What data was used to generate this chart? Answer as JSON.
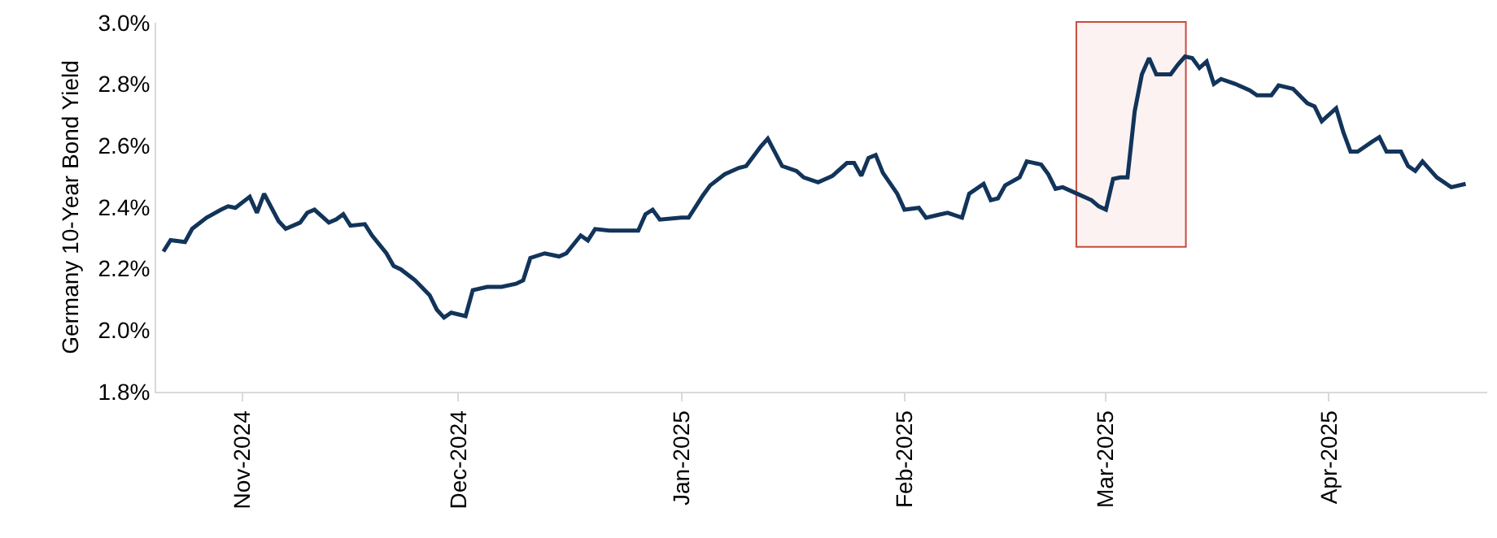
{
  "chart_data": {
    "type": "line",
    "ylabel": "Germany 10-Year Bond Yield",
    "x": [
      "2024-10-21",
      "2024-10-22",
      "2024-10-24",
      "2024-10-25",
      "2024-10-27",
      "2024-10-29",
      "2024-10-30",
      "2024-10-31",
      "2024-11-02",
      "2024-11-03",
      "2024-11-04",
      "2024-11-06",
      "2024-11-07",
      "2024-11-09",
      "2024-11-10",
      "2024-11-11",
      "2024-11-13",
      "2024-11-14",
      "2024-11-15",
      "2024-11-16",
      "2024-11-18",
      "2024-11-19",
      "2024-11-21",
      "2024-11-22",
      "2024-11-23",
      "2024-11-25",
      "2024-11-27",
      "2024-11-28",
      "2024-11-29",
      "2024-11-30",
      "2024-12-02",
      "2024-12-03",
      "2024-12-05",
      "2024-12-07",
      "2024-12-09",
      "2024-12-10",
      "2024-12-11",
      "2024-12-13",
      "2024-12-15",
      "2024-12-16",
      "2024-12-18",
      "2024-12-19",
      "2024-12-20",
      "2024-12-22",
      "2024-12-26",
      "2024-12-27",
      "2024-12-28",
      "2024-12-29",
      "2025-01-01",
      "2025-01-02",
      "2025-01-04",
      "2025-01-05",
      "2025-01-07",
      "2025-01-09",
      "2025-01-10",
      "2025-01-11",
      "2025-01-12",
      "2025-01-13",
      "2025-01-15",
      "2025-01-17",
      "2025-01-18",
      "2025-01-20",
      "2025-01-22",
      "2025-01-24",
      "2025-01-25",
      "2025-01-26",
      "2025-01-27",
      "2025-01-28",
      "2025-01-29",
      "2025-01-31",
      "2025-02-01",
      "2025-02-03",
      "2025-02-04",
      "2025-02-06",
      "2025-02-07",
      "2025-02-09",
      "2025-02-10",
      "2025-02-12",
      "2025-02-13",
      "2025-02-14",
      "2025-02-15",
      "2025-02-17",
      "2025-02-18",
      "2025-02-20",
      "2025-02-21",
      "2025-02-22",
      "2025-02-23",
      "2025-02-25",
      "2025-02-27",
      "2025-02-28",
      "2025-03-01",
      "2025-03-02",
      "2025-03-03",
      "2025-03-04",
      "2025-03-05",
      "2025-03-06",
      "2025-03-07",
      "2025-03-08",
      "2025-03-10",
      "2025-03-11",
      "2025-03-12",
      "2025-03-13",
      "2025-03-14",
      "2025-03-15",
      "2025-03-16",
      "2025-03-17",
      "2025-03-19",
      "2025-03-21",
      "2025-03-22",
      "2025-03-24",
      "2025-03-25",
      "2025-03-27",
      "2025-03-29",
      "2025-03-30",
      "2025-03-31",
      "2025-04-02",
      "2025-04-03",
      "2025-04-04",
      "2025-04-05",
      "2025-04-07",
      "2025-04-08",
      "2025-04-09",
      "2025-04-11",
      "2025-04-12",
      "2025-04-13",
      "2025-04-14",
      "2025-04-16",
      "2025-04-18",
      "2025-04-20"
    ],
    "series": [
      {
        "color": "#12345a",
        "values": [
          2.256,
          2.293,
          2.287,
          2.33,
          2.366,
          2.392,
          2.403,
          2.398,
          2.434,
          2.382,
          2.444,
          2.355,
          2.33,
          2.35,
          2.382,
          2.392,
          2.35,
          2.36,
          2.377,
          2.34,
          2.345,
          2.308,
          2.25,
          2.209,
          2.198,
          2.162,
          2.114,
          2.067,
          2.041,
          2.057,
          2.046,
          2.13,
          2.141,
          2.141,
          2.151,
          2.162,
          2.235,
          2.25,
          2.24,
          2.25,
          2.308,
          2.292,
          2.329,
          2.324,
          2.324,
          2.377,
          2.392,
          2.36,
          2.366,
          2.366,
          2.439,
          2.471,
          2.507,
          2.528,
          2.534,
          2.565,
          2.597,
          2.623,
          2.534,
          2.518,
          2.497,
          2.481,
          2.502,
          2.544,
          2.544,
          2.502,
          2.56,
          2.57,
          2.512,
          2.444,
          2.392,
          2.398,
          2.366,
          2.377,
          2.382,
          2.366,
          2.444,
          2.476,
          2.423,
          2.429,
          2.471,
          2.497,
          2.549,
          2.539,
          2.507,
          2.46,
          2.465,
          2.444,
          2.423,
          2.403,
          2.392,
          2.492,
          2.497,
          2.497,
          2.712,
          2.832,
          2.885,
          2.832,
          2.832,
          2.864,
          2.89,
          2.885,
          2.853,
          2.874,
          2.801,
          2.817,
          2.801,
          2.78,
          2.764,
          2.764,
          2.796,
          2.785,
          2.738,
          2.728,
          2.68,
          2.722,
          2.644,
          2.581,
          2.581,
          2.613,
          2.628,
          2.581,
          2.581,
          2.534,
          2.518,
          2.549,
          2.497,
          2.465,
          2.476
        ]
      }
    ],
    "xlim": [
      "2024-10-20",
      "2025-04-23"
    ],
    "xticks": [
      {
        "value": "2024-11-01",
        "label": "Nov-2024"
      },
      {
        "value": "2024-12-01",
        "label": "Dec-2024"
      },
      {
        "value": "2025-01-01",
        "label": "Jan-2025"
      },
      {
        "value": "2025-02-01",
        "label": "Feb-2025"
      },
      {
        "value": "2025-03-01",
        "label": "Mar-2025"
      },
      {
        "value": "2025-04-01",
        "label": "Apr-2025"
      }
    ],
    "ylim": [
      1.8,
      3.0
    ],
    "yticks": [
      {
        "value": 1.8,
        "label": "1.8%"
      },
      {
        "value": 2.0,
        "label": "2.0%"
      },
      {
        "value": 2.2,
        "label": "2.2%"
      },
      {
        "value": 2.4,
        "label": "2.4%"
      },
      {
        "value": 2.6,
        "label": "2.6%"
      },
      {
        "value": 2.8,
        "label": "2.8%"
      },
      {
        "value": 3.0,
        "label": "3.0%"
      }
    ],
    "bands": [
      {
        "axis": "x",
        "from": "2025-02-25",
        "to": "2025-03-12",
        "color": "#c0392b"
      }
    ],
    "grid": false,
    "marker": "none",
    "line_style": "solid"
  }
}
